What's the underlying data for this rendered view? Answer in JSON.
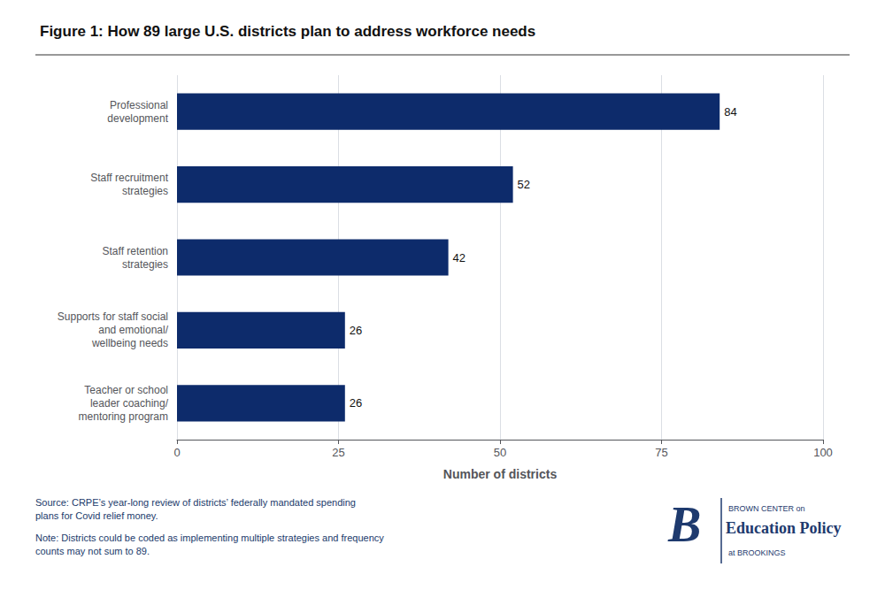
{
  "chart_data": {
    "type": "bar",
    "title": "Figure 1: How 89 large U.S. districts plan to address workforce needs",
    "orientation": "horizontal",
    "categories": [
      "Professional\ndevelopment",
      "Staff recruitment\nstrategies",
      "Staff retention\nstrategies",
      "Supports for staff social\nand emotional/\nwellbeing needs",
      "Teacher or school\nleader coaching/\nmentoring program"
    ],
    "values": [
      84,
      52,
      42,
      26,
      26
    ],
    "color": "#0d2b6b",
    "xlabel": "Number of districts",
    "xlim": [
      0,
      100
    ],
    "xticks": [
      0,
      25,
      50,
      75,
      100
    ],
    "grid": true,
    "data_labels": true,
    "annotations": [
      "Source: CRPE’s year-long review of districts’ federally mandated spending\nplans for Covid relief money.",
      "Note: Districts could be coded as implementing multiple strategies and frequency\ncounts may not sum to 89.",
      "B",
      "BROWN CENTER on",
      "Education Policy",
      "at BROOKINGS"
    ]
  }
}
